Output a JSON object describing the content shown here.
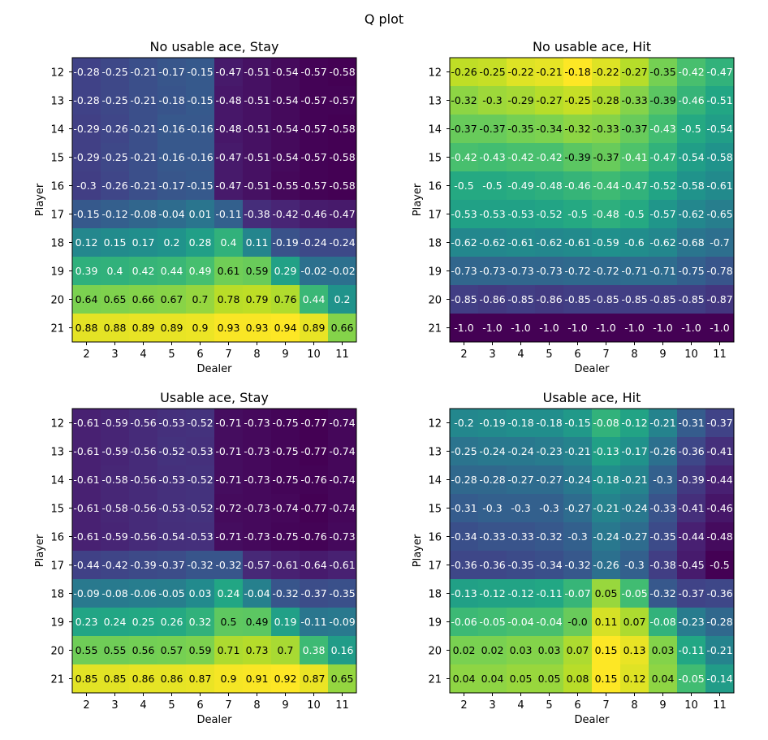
{
  "figure_title": "Q plot",
  "chart_data": [
    {
      "type": "heatmap",
      "title": "No usable ace, Stay",
      "xlabel": "Dealer",
      "ylabel": "Player",
      "x": [
        2,
        3,
        4,
        5,
        6,
        7,
        8,
        9,
        10,
        11
      ],
      "y": [
        12,
        13,
        14,
        15,
        16,
        17,
        18,
        19,
        20,
        21
      ],
      "colormap": "viridis",
      "values": [
        [
          "-0.28",
          "-0.25",
          "-0.21",
          "-0.17",
          "-0.15",
          "-0.47",
          "-0.51",
          "-0.54",
          "-0.57",
          "-0.58"
        ],
        [
          "-0.28",
          "-0.25",
          "-0.21",
          "-0.18",
          "-0.15",
          "-0.48",
          "-0.51",
          "-0.54",
          "-0.57",
          "-0.57"
        ],
        [
          "-0.29",
          "-0.26",
          "-0.21",
          "-0.16",
          "-0.16",
          "-0.48",
          "-0.51",
          "-0.54",
          "-0.57",
          "-0.58"
        ],
        [
          "-0.29",
          "-0.25",
          "-0.21",
          "-0.16",
          "-0.16",
          "-0.47",
          "-0.51",
          "-0.54",
          "-0.57",
          "-0.58"
        ],
        [
          "-0.3",
          "-0.26",
          "-0.21",
          "-0.17",
          "-0.15",
          "-0.47",
          "-0.51",
          "-0.55",
          "-0.57",
          "-0.58"
        ],
        [
          "-0.15",
          "-0.12",
          "-0.08",
          "-0.04",
          "0.01",
          "-0.11",
          "-0.38",
          "-0.42",
          "-0.46",
          "-0.47"
        ],
        [
          "0.12",
          "0.15",
          "0.17",
          "0.2",
          "0.28",
          "0.4",
          "0.11",
          "-0.19",
          "-0.24",
          "-0.24"
        ],
        [
          "0.39",
          "0.4",
          "0.42",
          "0.44",
          "0.49",
          "0.61",
          "0.59",
          "0.29",
          "-0.02",
          "-0.02"
        ],
        [
          "0.64",
          "0.65",
          "0.66",
          "0.67",
          "0.7",
          "0.78",
          "0.79",
          "0.76",
          "0.44",
          "0.2"
        ],
        [
          "0.88",
          "0.88",
          "0.89",
          "0.89",
          "0.9",
          "0.93",
          "0.93",
          "0.94",
          "0.89",
          "0.66"
        ]
      ]
    },
    {
      "type": "heatmap",
      "title": "No usable ace, Hit",
      "xlabel": "Dealer",
      "ylabel": "Player",
      "x": [
        2,
        3,
        4,
        5,
        6,
        7,
        8,
        9,
        10,
        11
      ],
      "y": [
        12,
        13,
        14,
        15,
        16,
        17,
        18,
        19,
        20,
        21
      ],
      "colormap": "viridis",
      "values": [
        [
          "-0.26",
          "-0.25",
          "-0.22",
          "-0.21",
          "-0.18",
          "-0.22",
          "-0.27",
          "-0.35",
          "-0.42",
          "-0.47"
        ],
        [
          "-0.32",
          "-0.3",
          "-0.29",
          "-0.27",
          "-0.25",
          "-0.28",
          "-0.33",
          "-0.39",
          "-0.46",
          "-0.51"
        ],
        [
          "-0.37",
          "-0.37",
          "-0.35",
          "-0.34",
          "-0.32",
          "-0.33",
          "-0.37",
          "-0.43",
          "-0.5",
          "-0.54"
        ],
        [
          "-0.42",
          "-0.43",
          "-0.42",
          "-0.42",
          "-0.39",
          "-0.37",
          "-0.41",
          "-0.47",
          "-0.54",
          "-0.58"
        ],
        [
          "-0.5",
          "-0.5",
          "-0.49",
          "-0.48",
          "-0.46",
          "-0.44",
          "-0.47",
          "-0.52",
          "-0.58",
          "-0.61"
        ],
        [
          "-0.53",
          "-0.53",
          "-0.53",
          "-0.52",
          "-0.5",
          "-0.48",
          "-0.5",
          "-0.57",
          "-0.62",
          "-0.65"
        ],
        [
          "-0.62",
          "-0.62",
          "-0.61",
          "-0.62",
          "-0.61",
          "-0.59",
          "-0.6",
          "-0.62",
          "-0.68",
          "-0.7"
        ],
        [
          "-0.73",
          "-0.73",
          "-0.73",
          "-0.73",
          "-0.72",
          "-0.72",
          "-0.71",
          "-0.71",
          "-0.75",
          "-0.78"
        ],
        [
          "-0.85",
          "-0.86",
          "-0.85",
          "-0.86",
          "-0.85",
          "-0.85",
          "-0.85",
          "-0.85",
          "-0.85",
          "-0.87"
        ],
        [
          "-1.0",
          "-1.0",
          "-1.0",
          "-1.0",
          "-1.0",
          "-1.0",
          "-1.0",
          "-1.0",
          "-1.0",
          "-1.0"
        ]
      ]
    },
    {
      "type": "heatmap",
      "title": "Usable ace, Stay",
      "xlabel": "Dealer",
      "ylabel": "Player",
      "x": [
        2,
        3,
        4,
        5,
        6,
        7,
        8,
        9,
        10,
        11
      ],
      "y": [
        12,
        13,
        14,
        15,
        16,
        17,
        18,
        19,
        20,
        21
      ],
      "colormap": "viridis",
      "values": [
        [
          "-0.61",
          "-0.59",
          "-0.56",
          "-0.53",
          "-0.52",
          "-0.71",
          "-0.73",
          "-0.75",
          "-0.77",
          "-0.74"
        ],
        [
          "-0.61",
          "-0.59",
          "-0.56",
          "-0.52",
          "-0.53",
          "-0.71",
          "-0.73",
          "-0.75",
          "-0.77",
          "-0.74"
        ],
        [
          "-0.61",
          "-0.58",
          "-0.56",
          "-0.53",
          "-0.52",
          "-0.71",
          "-0.73",
          "-0.75",
          "-0.76",
          "-0.74"
        ],
        [
          "-0.61",
          "-0.58",
          "-0.56",
          "-0.53",
          "-0.52",
          "-0.72",
          "-0.73",
          "-0.74",
          "-0.77",
          "-0.74"
        ],
        [
          "-0.61",
          "-0.59",
          "-0.56",
          "-0.54",
          "-0.53",
          "-0.71",
          "-0.73",
          "-0.75",
          "-0.76",
          "-0.73"
        ],
        [
          "-0.44",
          "-0.42",
          "-0.39",
          "-0.37",
          "-0.32",
          "-0.32",
          "-0.57",
          "-0.61",
          "-0.64",
          "-0.61"
        ],
        [
          "-0.09",
          "-0.08",
          "-0.06",
          "-0.05",
          "0.03",
          "0.24",
          "-0.04",
          "-0.32",
          "-0.37",
          "-0.35"
        ],
        [
          "0.23",
          "0.24",
          "0.25",
          "0.26",
          "0.32",
          "0.5",
          "0.49",
          "0.19",
          "-0.11",
          "-0.09"
        ],
        [
          "0.55",
          "0.55",
          "0.56",
          "0.57",
          "0.59",
          "0.71",
          "0.73",
          "0.7",
          "0.38",
          "0.16"
        ],
        [
          "0.85",
          "0.85",
          "0.86",
          "0.86",
          "0.87",
          "0.9",
          "0.91",
          "0.92",
          "0.87",
          "0.65"
        ]
      ]
    },
    {
      "type": "heatmap",
      "title": "Usable ace, Hit",
      "xlabel": "Dealer",
      "ylabel": "Player",
      "x": [
        2,
        3,
        4,
        5,
        6,
        7,
        8,
        9,
        10,
        11
      ],
      "y": [
        12,
        13,
        14,
        15,
        16,
        17,
        18,
        19,
        20,
        21
      ],
      "colormap": "viridis",
      "values": [
        [
          "-0.2",
          "-0.19",
          "-0.18",
          "-0.18",
          "-0.15",
          "-0.08",
          "-0.12",
          "-0.21",
          "-0.31",
          "-0.37"
        ],
        [
          "-0.25",
          "-0.24",
          "-0.24",
          "-0.23",
          "-0.21",
          "-0.13",
          "-0.17",
          "-0.26",
          "-0.36",
          "-0.41"
        ],
        [
          "-0.28",
          "-0.28",
          "-0.27",
          "-0.27",
          "-0.24",
          "-0.18",
          "-0.21",
          "-0.3",
          "-0.39",
          "-0.44"
        ],
        [
          "-0.31",
          "-0.3",
          "-0.3",
          "-0.3",
          "-0.27",
          "-0.21",
          "-0.24",
          "-0.33",
          "-0.41",
          "-0.46"
        ],
        [
          "-0.34",
          "-0.33",
          "-0.33",
          "-0.32",
          "-0.3",
          "-0.24",
          "-0.27",
          "-0.35",
          "-0.44",
          "-0.48"
        ],
        [
          "-0.36",
          "-0.36",
          "-0.35",
          "-0.34",
          "-0.32",
          "-0.26",
          "-0.3",
          "-0.38",
          "-0.45",
          "-0.5"
        ],
        [
          "-0.13",
          "-0.12",
          "-0.12",
          "-0.11",
          "-0.07",
          "0.05",
          "-0.05",
          "-0.32",
          "-0.37",
          "-0.36"
        ],
        [
          "-0.06",
          "-0.05",
          "-0.04",
          "-0.04",
          "-0.0",
          "0.11",
          "0.07",
          "-0.08",
          "-0.23",
          "-0.28"
        ],
        [
          "0.02",
          "0.02",
          "0.03",
          "0.03",
          "0.07",
          "0.15",
          "0.13",
          "0.03",
          "-0.11",
          "-0.21"
        ],
        [
          "0.04",
          "0.04",
          "0.05",
          "0.05",
          "0.08",
          "0.15",
          "0.12",
          "0.04",
          "-0.05",
          "-0.14"
        ]
      ]
    }
  ]
}
